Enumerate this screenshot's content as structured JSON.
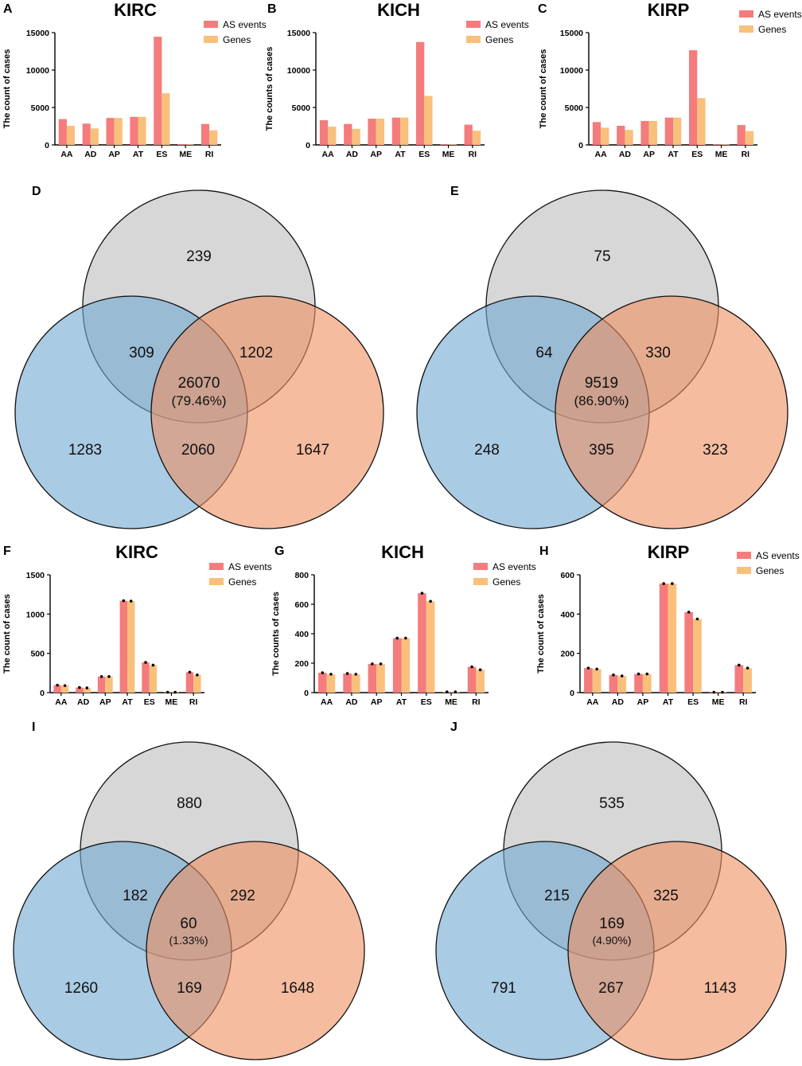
{
  "colors": {
    "as_events": "#f47c7c",
    "genes": "#f9c07c",
    "circle_top": "#bdbdbd",
    "circle_left": "#6fa8d2",
    "circle_right": "#ee9060"
  },
  "chart_data": [
    {
      "id": "A",
      "type": "bar",
      "title": "KIRC",
      "ylabel": "The count of cases",
      "ylim": [
        0,
        15000
      ],
      "yticks": [
        0,
        5000,
        10000,
        15000
      ],
      "categories": [
        "AA",
        "AD",
        "AP",
        "AT",
        "ES",
        "ME",
        "RI"
      ],
      "series": [
        {
          "name": "AS events",
          "values": [
            3450,
            2850,
            3600,
            3750,
            14450,
            100,
            2800
          ]
        },
        {
          "name": "Genes",
          "values": [
            2550,
            2200,
            3600,
            3750,
            6900,
            70,
            1950
          ]
        }
      ]
    },
    {
      "id": "B",
      "type": "bar",
      "title": "KICH",
      "ylabel": "The counts of cases",
      "ylim": [
        0,
        15000
      ],
      "yticks": [
        0,
        5000,
        10000,
        15000
      ],
      "categories": [
        "AA",
        "AD",
        "AP",
        "AT",
        "ES",
        "ME",
        "RI"
      ],
      "series": [
        {
          "name": "AS events",
          "values": [
            3300,
            2800,
            3500,
            3650,
            13750,
            100,
            2700
          ]
        },
        {
          "name": "Genes",
          "values": [
            2450,
            2150,
            3500,
            3650,
            6550,
            70,
            1900
          ]
        }
      ]
    },
    {
      "id": "C",
      "type": "bar",
      "title": "KIRP",
      "ylabel": "The count of cases",
      "ylim": [
        0,
        15000
      ],
      "yticks": [
        0,
        5000,
        10000,
        15000
      ],
      "categories": [
        "AA",
        "AD",
        "AP",
        "AT",
        "ES",
        "ME",
        "RI"
      ],
      "series": [
        {
          "name": "AS events",
          "values": [
            3050,
            2550,
            3200,
            3650,
            12650,
            100,
            2650
          ]
        },
        {
          "name": "Genes",
          "values": [
            2300,
            2000,
            3200,
            3650,
            6250,
            70,
            1850
          ]
        }
      ]
    },
    {
      "id": "F",
      "type": "bar",
      "title": "KIRC",
      "ylabel": "The count of cases",
      "ylim": [
        0,
        1500
      ],
      "yticks": [
        0,
        500,
        1000,
        1500
      ],
      "categories": [
        "AA",
        "AD",
        "AP",
        "AT",
        "ES",
        "ME",
        "RI"
      ],
      "series": [
        {
          "name": "AS events",
          "values": [
            95,
            65,
            205,
            1170,
            385,
            5,
            260
          ]
        },
        {
          "name": "Genes",
          "values": [
            90,
            60,
            205,
            1165,
            350,
            5,
            225
          ]
        }
      ]
    },
    {
      "id": "G",
      "type": "bar",
      "title": "KICH",
      "ylabel": "The counts of cases",
      "ylim": [
        0,
        800
      ],
      "yticks": [
        0,
        200,
        400,
        600,
        800
      ],
      "categories": [
        "AA",
        "AD",
        "AP",
        "AT",
        "ES",
        "ME",
        "RI"
      ],
      "series": [
        {
          "name": "AS events",
          "values": [
            135,
            130,
            195,
            370,
            675,
            5,
            175
          ]
        },
        {
          "name": "Genes",
          "values": [
            125,
            125,
            195,
            370,
            620,
            5,
            155
          ]
        }
      ]
    },
    {
      "id": "H",
      "type": "bar",
      "title": "KIRP",
      "ylabel": "The count of cases",
      "ylim": [
        0,
        600
      ],
      "yticks": [
        0,
        200,
        400,
        600
      ],
      "categories": [
        "AA",
        "AD",
        "AP",
        "AT",
        "ES",
        "ME",
        "RI"
      ],
      "series": [
        {
          "name": "AS events",
          "values": [
            125,
            90,
            95,
            555,
            410,
            2,
            140
          ]
        },
        {
          "name": "Genes",
          "values": [
            120,
            85,
            95,
            555,
            375,
            2,
            125
          ]
        }
      ]
    }
  ],
  "venns": [
    {
      "id": "D",
      "top": "239",
      "top_left": "309",
      "top_right": "1202",
      "center": "26070",
      "center_pct": "(79.46%)",
      "left": "1283",
      "bottom": "2060",
      "right": "1647"
    },
    {
      "id": "E",
      "top": "75",
      "top_left": "64",
      "top_right": "330",
      "center": "9519",
      "center_pct": "(86.90%)",
      "left": "248",
      "bottom": "395",
      "right": "323"
    },
    {
      "id": "I",
      "top": "880",
      "top_left": "182",
      "top_right": "292",
      "center": "60",
      "center_pct": "(1.33%)",
      "left": "1260",
      "bottom": "169",
      "right": "1648"
    },
    {
      "id": "J",
      "top": "535",
      "top_left": "215",
      "top_right": "325",
      "center": "169",
      "center_pct": "(4.90%)",
      "left": "791",
      "bottom": "267",
      "right": "1143"
    }
  ]
}
